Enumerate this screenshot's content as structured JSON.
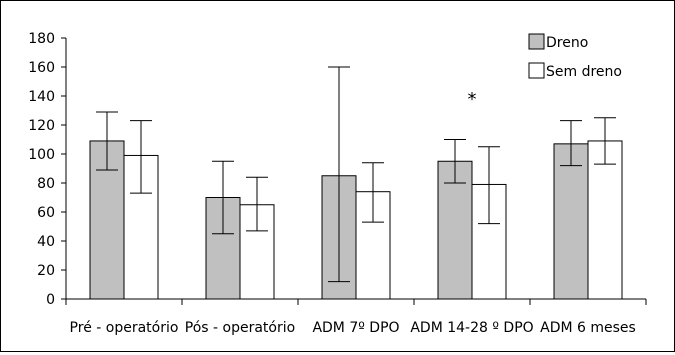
{
  "chart_data": {
    "type": "bar",
    "title": "",
    "xlabel": "",
    "ylabel": "",
    "ylim": [
      0,
      180
    ],
    "yticks": [
      0,
      20,
      40,
      60,
      80,
      100,
      120,
      140,
      160,
      180
    ],
    "grid": false,
    "legend_position": "top-right",
    "categories": [
      "Pré - operatório",
      "Pós - operatório",
      "ADM 7º DPO",
      "ADM 14-28 º DPO",
      "ADM 6 meses"
    ],
    "series": [
      {
        "name": "Dreno",
        "color": "#c0c0c0",
        "values": [
          109,
          70,
          85,
          95,
          107
        ],
        "error_low": [
          89,
          45,
          12,
          80,
          92
        ],
        "error_high": [
          129,
          95,
          160,
          110,
          123
        ]
      },
      {
        "name": "Sem dreno",
        "color": "#ffffff",
        "values": [
          99,
          65,
          74,
          79,
          109
        ],
        "error_low": [
          73,
          47,
          53,
          52,
          93
        ],
        "error_high": [
          123,
          84,
          94,
          105,
          125
        ]
      }
    ],
    "annotations": [
      {
        "text": "*",
        "category": "ADM 14-28 º DPO",
        "value": 138
      }
    ]
  }
}
